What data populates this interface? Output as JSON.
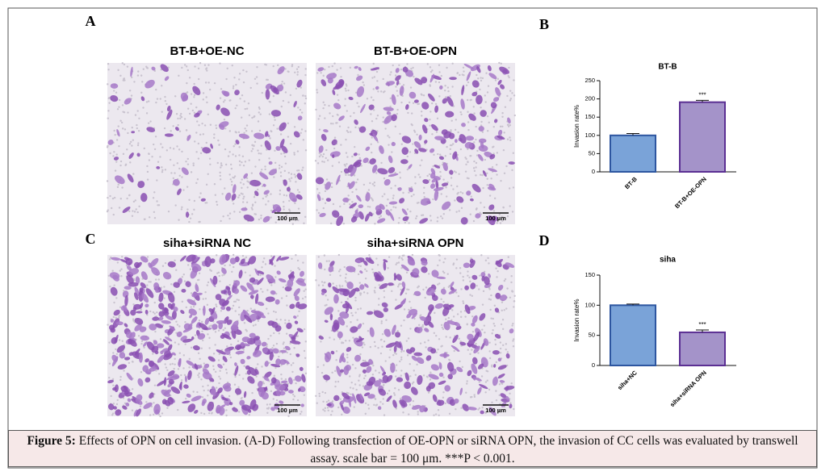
{
  "panels": [
    {
      "letter": "A",
      "images": [
        {
          "title": "BT-B+OE-NC",
          "scale": "100 µm"
        },
        {
          "title": "BT-B+OE-OPN",
          "scale": "100 µm"
        }
      ]
    },
    {
      "letter": "C",
      "images": [
        {
          "title": "siha+siRNA NC",
          "scale": "100 µm"
        },
        {
          "title": "siha+siRNA OPN",
          "scale": "100 µm"
        }
      ]
    }
  ],
  "chart_data": [
    {
      "type": "bar",
      "letter": "B",
      "title": "BT-B",
      "y_label": "Invasion rate%",
      "categories": [
        "BT-B",
        "BT-B+OE-OPN"
      ],
      "values": [
        100,
        191
      ],
      "errors": [
        5,
        5
      ],
      "significance": [
        null,
        "***"
      ],
      "colors": [
        "#7aa3d8",
        "#a493c9"
      ],
      "edge_colors": [
        "#2d56a0",
        "#5b2f93"
      ],
      "ylim": [
        0,
        250
      ],
      "yticks": [
        0,
        50,
        100,
        150,
        200,
        250
      ]
    },
    {
      "type": "bar",
      "letter": "D",
      "title": "siha",
      "y_label": "Invasion rate%",
      "categories": [
        "siha+NC",
        "siha+siRNA OPN"
      ],
      "values": [
        100,
        55
      ],
      "errors": [
        2,
        4
      ],
      "significance": [
        null,
        "***"
      ],
      "colors": [
        "#7aa3d8",
        "#a493c9"
      ],
      "edge_colors": [
        "#2d56a0",
        "#5b2f93"
      ],
      "ylim": [
        0,
        150
      ],
      "yticks": [
        0,
        50,
        100,
        150
      ]
    }
  ],
  "caption": {
    "label": "Figure 5:",
    "text": "Effects of OPN on cell invasion. (A-D) Following transfection of OE-OPN or siRNA OPN, the invasion of CC cells was evaluated by transwell assay. scale bar = 100 μm. ***P < 0.001."
  }
}
